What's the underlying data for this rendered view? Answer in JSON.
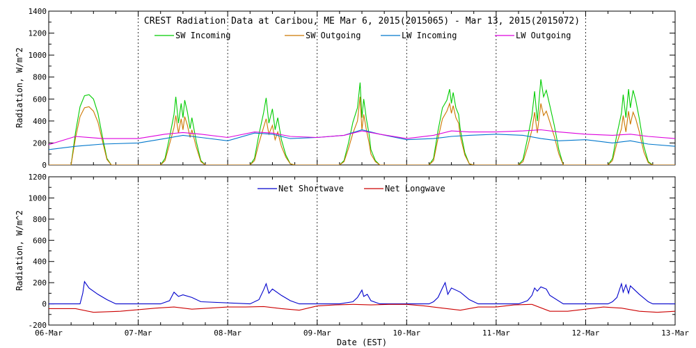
{
  "chart_data": [
    {
      "type": "line",
      "title": "CREST Radiation Data at Caribou, ME   Mar  6, 2015(2015065) - Mar 13, 2015(2015072)",
      "xlabel": "",
      "ylabel": "Radiation, W/m^2",
      "ylim": [
        0,
        1400
      ],
      "yticks": [
        0,
        200,
        400,
        600,
        800,
        1000,
        1200,
        1400
      ],
      "x_unit": "days since 06-Mar",
      "xlim": [
        0,
        7
      ],
      "grid": "vertical dotted at day boundaries",
      "legend_placement": "top, single row",
      "series": [
        {
          "name": "SW Incoming",
          "color": "#00cc00",
          "x": [
            0.0,
            0.25,
            0.3,
            0.35,
            0.4,
            0.45,
            0.5,
            0.55,
            0.6,
            0.65,
            0.7,
            0.75,
            1.25,
            1.3,
            1.35,
            1.4,
            1.42,
            1.45,
            1.48,
            1.5,
            1.52,
            1.55,
            1.58,
            1.6,
            1.65,
            1.7,
            1.75,
            2.25,
            2.3,
            2.35,
            2.4,
            2.43,
            2.46,
            2.5,
            2.53,
            2.56,
            2.6,
            2.65,
            2.7,
            2.75,
            3.25,
            3.3,
            3.35,
            3.4,
            3.45,
            3.48,
            3.5,
            3.52,
            3.55,
            3.58,
            3.6,
            3.65,
            3.7,
            3.75,
            4.25,
            4.3,
            4.35,
            4.4,
            4.45,
            4.48,
            4.5,
            4.52,
            4.55,
            4.58,
            4.6,
            4.65,
            4.7,
            4.75,
            5.25,
            5.3,
            5.35,
            5.4,
            5.43,
            5.46,
            5.5,
            5.53,
            5.56,
            5.6,
            5.65,
            5.7,
            5.75,
            6.25,
            6.3,
            6.35,
            6.4,
            6.42,
            6.45,
            6.48,
            6.5,
            6.53,
            6.56,
            6.6,
            6.65,
            6.7,
            6.75,
            7.0
          ],
          "y": [
            0,
            0,
            300,
            530,
            630,
            640,
            600,
            470,
            260,
            60,
            0,
            0,
            0,
            60,
            250,
            460,
            620,
            380,
            560,
            430,
            590,
            480,
            330,
            430,
            210,
            40,
            0,
            0,
            60,
            280,
            470,
            610,
            380,
            510,
            320,
            430,
            230,
            90,
            10,
            0,
            0,
            40,
            200,
            390,
            520,
            750,
            430,
            600,
            420,
            280,
            140,
            40,
            0,
            0,
            0,
            60,
            310,
            520,
            590,
            690,
            560,
            660,
            520,
            460,
            320,
            110,
            10,
            0,
            0,
            50,
            240,
            450,
            670,
            400,
            780,
            620,
            680,
            540,
            360,
            140,
            0,
            0,
            60,
            280,
            470,
            640,
            430,
            690,
            520,
            680,
            590,
            420,
            170,
            30,
            0,
            0
          ]
        },
        {
          "name": "SW Outgoing",
          "color": "#cc7700",
          "x": [
            0.0,
            0.25,
            0.3,
            0.35,
            0.4,
            0.45,
            0.5,
            0.55,
            0.6,
            0.65,
            0.7,
            0.75,
            1.25,
            1.3,
            1.35,
            1.4,
            1.42,
            1.45,
            1.48,
            1.5,
            1.52,
            1.55,
            1.58,
            1.6,
            1.65,
            1.7,
            1.75,
            2.25,
            2.3,
            2.35,
            2.4,
            2.43,
            2.46,
            2.5,
            2.53,
            2.56,
            2.6,
            2.65,
            2.7,
            2.75,
            3.25,
            3.3,
            3.35,
            3.4,
            3.45,
            3.48,
            3.5,
            3.52,
            3.55,
            3.58,
            3.6,
            3.65,
            3.7,
            3.75,
            4.25,
            4.3,
            4.35,
            4.4,
            4.45,
            4.48,
            4.5,
            4.52,
            4.55,
            4.58,
            4.6,
            4.65,
            4.7,
            4.75,
            5.25,
            5.3,
            5.35,
            5.4,
            5.43,
            5.46,
            5.5,
            5.53,
            5.56,
            5.6,
            5.65,
            5.7,
            5.75,
            6.25,
            6.3,
            6.35,
            6.4,
            6.42,
            6.45,
            6.48,
            6.5,
            6.53,
            6.56,
            6.6,
            6.65,
            6.7,
            6.75,
            7.0
          ],
          "y": [
            0,
            0,
            250,
            440,
            520,
            530,
            490,
            390,
            220,
            50,
            0,
            0,
            0,
            40,
            190,
            340,
            450,
            290,
            420,
            320,
            440,
            360,
            250,
            320,
            160,
            30,
            0,
            0,
            40,
            200,
            340,
            420,
            280,
            360,
            230,
            300,
            170,
            70,
            10,
            0,
            0,
            30,
            150,
            290,
            400,
            620,
            320,
            460,
            320,
            200,
            100,
            30,
            0,
            0,
            0,
            40,
            240,
            420,
            490,
            560,
            470,
            540,
            430,
            380,
            260,
            90,
            10,
            0,
            0,
            30,
            160,
            320,
            480,
            290,
            560,
            450,
            490,
            390,
            260,
            100,
            0,
            0,
            40,
            200,
            330,
            450,
            300,
            490,
            370,
            480,
            420,
            300,
            120,
            20,
            0,
            0
          ]
        },
        {
          "name": "LW Incoming",
          "color": "#0077cc",
          "x": [
            0.0,
            0.3,
            0.6,
            1.0,
            1.3,
            1.5,
            1.7,
            2.0,
            2.3,
            2.5,
            2.7,
            3.0,
            3.3,
            3.5,
            3.7,
            4.0,
            4.3,
            4.5,
            4.7,
            5.0,
            5.3,
            5.5,
            5.7,
            6.0,
            6.3,
            6.5,
            6.7,
            7.0
          ],
          "y": [
            140,
            170,
            190,
            200,
            240,
            270,
            250,
            220,
            290,
            280,
            240,
            250,
            270,
            320,
            280,
            230,
            240,
            260,
            270,
            280,
            270,
            240,
            220,
            230,
            200,
            220,
            190,
            170
          ]
        },
        {
          "name": "LW Outgoing",
          "color": "#dd00dd",
          "x": [
            0.0,
            0.3,
            0.6,
            1.0,
            1.3,
            1.5,
            1.7,
            2.0,
            2.3,
            2.5,
            2.7,
            3.0,
            3.3,
            3.5,
            3.7,
            4.0,
            4.3,
            4.5,
            4.7,
            5.0,
            5.3,
            5.5,
            5.7,
            6.0,
            6.3,
            6.5,
            6.7,
            7.0
          ],
          "y": [
            185,
            260,
            240,
            240,
            280,
            295,
            280,
            250,
            300,
            290,
            260,
            250,
            270,
            310,
            280,
            240,
            270,
            310,
            300,
            300,
            310,
            320,
            300,
            280,
            270,
            280,
            260,
            240
          ]
        }
      ]
    },
    {
      "type": "line",
      "title": "",
      "xlabel": "Date (EST)",
      "ylabel": "Radiation, W/m^2",
      "ylim": [
        -200,
        1200
      ],
      "yticks": [
        -200,
        0,
        200,
        400,
        600,
        800,
        1000,
        1200
      ],
      "x_unit": "days since 06-Mar",
      "xlim": [
        0,
        7
      ],
      "categories": [
        "06-Mar",
        "07-Mar",
        "08-Mar",
        "09-Mar",
        "10-Mar",
        "11-Mar",
        "12-Mar",
        "13-Mar"
      ],
      "grid": "vertical dotted at day boundaries",
      "legend_placement": "top, single row",
      "series": [
        {
          "name": "Net Shortwave",
          "color": "#0000cc",
          "x": [
            0.0,
            0.35,
            0.38,
            0.4,
            0.45,
            0.55,
            0.65,
            0.75,
            1.25,
            1.35,
            1.4,
            1.45,
            1.5,
            1.6,
            1.7,
            2.25,
            2.35,
            2.4,
            2.43,
            2.46,
            2.5,
            2.6,
            2.7,
            2.8,
            3.25,
            3.4,
            3.45,
            3.5,
            3.52,
            3.56,
            3.6,
            3.7,
            4.25,
            4.3,
            4.35,
            4.4,
            4.43,
            4.46,
            4.5,
            4.6,
            4.7,
            4.8,
            5.25,
            5.35,
            5.4,
            5.43,
            5.46,
            5.5,
            5.56,
            5.6,
            5.75,
            6.25,
            6.3,
            6.35,
            6.4,
            6.42,
            6.45,
            6.48,
            6.5,
            6.55,
            6.6,
            6.7,
            6.75,
            7.0
          ],
          "y": [
            0,
            0,
            100,
            210,
            150,
            90,
            40,
            0,
            0,
            30,
            110,
            70,
            85,
            60,
            20,
            0,
            40,
            130,
            190,
            100,
            140,
            80,
            30,
            0,
            0,
            20,
            60,
            130,
            70,
            90,
            30,
            0,
            0,
            20,
            60,
            150,
            200,
            90,
            150,
            110,
            40,
            0,
            0,
            30,
            80,
            150,
            120,
            160,
            140,
            80,
            0,
            0,
            20,
            60,
            190,
            110,
            180,
            100,
            170,
            130,
            90,
            20,
            0,
            0
          ]
        },
        {
          "name": "Net Longwave",
          "color": "#cc0000",
          "x": [
            0.0,
            0.3,
            0.5,
            0.8,
            1.0,
            1.2,
            1.4,
            1.6,
            1.8,
            2.0,
            2.2,
            2.4,
            2.6,
            2.8,
            3.0,
            3.2,
            3.4,
            3.6,
            3.8,
            4.0,
            4.2,
            4.4,
            4.6,
            4.8,
            5.0,
            5.2,
            5.4,
            5.6,
            5.8,
            6.0,
            6.2,
            6.4,
            6.6,
            6.8,
            7.0
          ],
          "y": [
            -45,
            -45,
            -80,
            -70,
            -55,
            -40,
            -30,
            -50,
            -40,
            -30,
            -30,
            -25,
            -45,
            -60,
            -20,
            -10,
            -5,
            -10,
            -5,
            -5,
            -20,
            -40,
            -60,
            -30,
            -30,
            -10,
            -5,
            -70,
            -70,
            -50,
            -30,
            -40,
            -70,
            -80,
            -70
          ]
        }
      ]
    }
  ]
}
